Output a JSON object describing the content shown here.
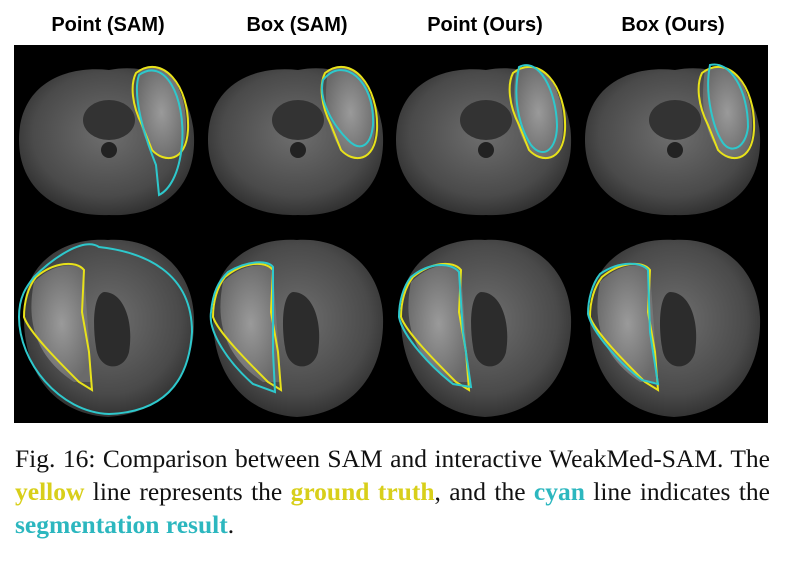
{
  "headers": [
    "Point (SAM)",
    "Box (SAM)",
    "Point (Ours)",
    "Box (Ours)"
  ],
  "caption": {
    "parts": [
      "Fig. 16: Comparison between SAM and interactive WeakMed-SAM. The ",
      "yellow",
      " line represents the ",
      "ground truth",
      ", and the ",
      "cyan",
      " line indicates the ",
      "segmentation result",
      "."
    ]
  }
}
